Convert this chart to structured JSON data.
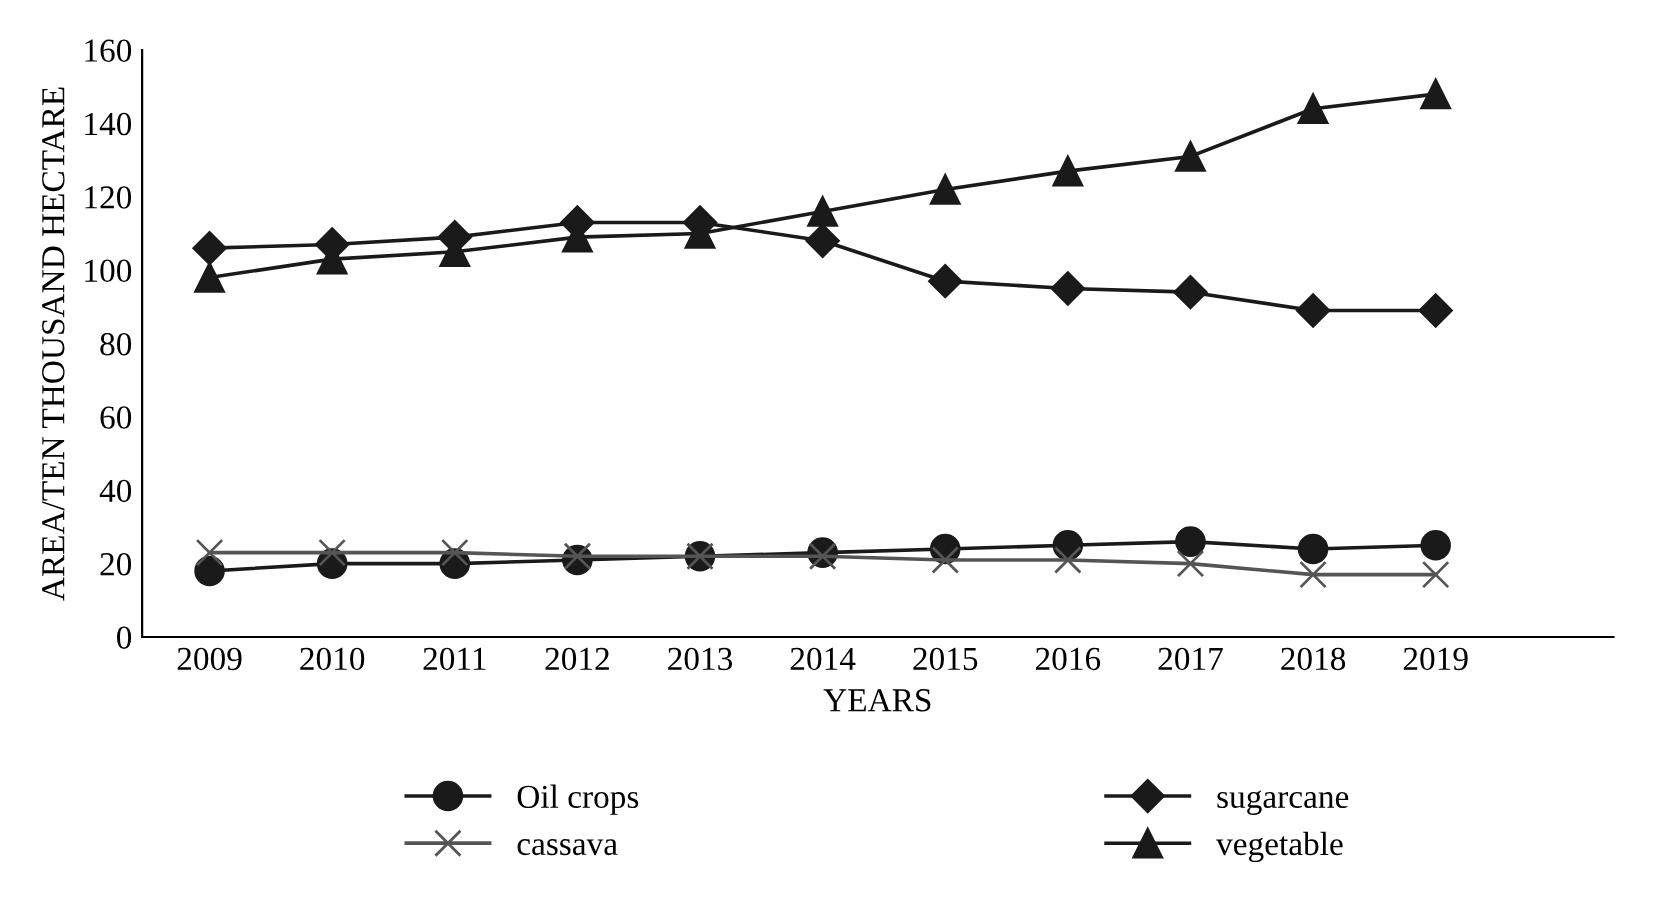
{
  "chart_data": {
    "type": "line",
    "xlabel": "YEARS",
    "ylabel": "AREA/TEN THOUSAND HECTARE",
    "categories": [
      "2009",
      "2010",
      "2011",
      "2012",
      "2013",
      "2014",
      "2015",
      "2016",
      "2017",
      "2018",
      "2019"
    ],
    "series": [
      {
        "name": "Oil crops",
        "color": "#1a1a1a",
        "marker": "circle",
        "values": [
          18,
          20,
          20,
          21,
          22,
          23,
          24,
          25,
          26,
          24,
          25
        ]
      },
      {
        "name": "cassava",
        "color": "#555555",
        "marker": "cross",
        "values": [
          23,
          23,
          23,
          22,
          22,
          22,
          21,
          21,
          20,
          17,
          17
        ]
      },
      {
        "name": "sugarcane",
        "color": "#1a1a1a",
        "marker": "diamond",
        "values": [
          106,
          107,
          109,
          113,
          113,
          108,
          97,
          95,
          94,
          89,
          89
        ]
      },
      {
        "name": "vegetable",
        "color": "#1a1a1a",
        "marker": "triangle",
        "values": [
          98,
          103,
          105,
          109,
          110,
          116,
          122,
          127,
          131,
          144,
          148
        ]
      }
    ],
    "ylim": [
      0,
      160
    ],
    "yticks": [
      0,
      20,
      40,
      60,
      80,
      100,
      120,
      140,
      160
    ],
    "grid": false,
    "legend": "bottom",
    "line_style": "solid"
  }
}
